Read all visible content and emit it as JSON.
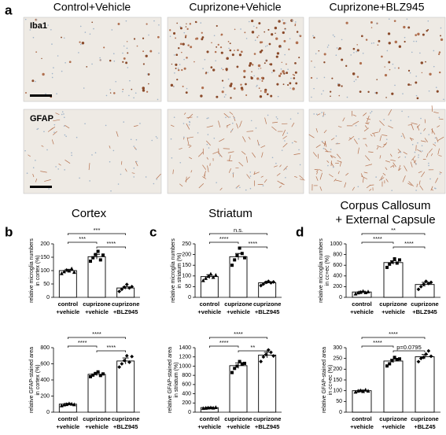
{
  "panel_a": {
    "label": "a",
    "columns": [
      "Control+Vehicle",
      "Cuprizone+Vehicle",
      "Cuprizone+BLZ945"
    ],
    "rows": [
      "Iba1",
      "GFAP"
    ]
  },
  "chart_data": [
    {
      "type": "bar",
      "panel": "b",
      "title": [
        "Cortex"
      ],
      "ylabel": [
        "relative microglia numbers",
        "in cortex (%)"
      ],
      "categories": [
        [
          "control",
          "+vehicle"
        ],
        [
          "cuprizone",
          "+vehicle"
        ],
        [
          "cuprizone",
          "+BLZ945"
        ]
      ],
      "values": [
        100,
        152,
        35
      ],
      "errors": [
        5,
        9,
        5
      ],
      "points": [
        [
          90,
          97,
          103,
          100,
          108,
          95
        ],
        [
          135,
          148,
          160,
          172,
          140,
          158
        ],
        [
          22,
          30,
          38,
          48,
          35,
          40
        ]
      ],
      "significance": [
        "***",
        "****",
        "***"
      ],
      "ylim": [
        0,
        200
      ],
      "yticks": [
        0,
        50,
        100,
        150,
        200
      ]
    },
    {
      "type": "bar",
      "title": null,
      "ylabel": [
        "relative GFAP-stained area",
        "in cortex (%)"
      ],
      "categories": [
        [
          "control",
          "+vehicle"
        ],
        [
          "cuprizone",
          "+vehicle"
        ],
        [
          "cuprizone",
          "+BLZ945"
        ]
      ],
      "values": [
        100,
        470,
        635
      ],
      "errors": [
        10,
        18,
        38
      ],
      "points": [
        [
          85,
          95,
          100,
          110,
          105,
          98
        ],
        [
          440,
          460,
          480,
          500,
          455,
          475
        ],
        [
          560,
          600,
          640,
          700,
          620,
          690
        ]
      ],
      "significance": [
        "****",
        "****",
        "****"
      ],
      "ylim": [
        0,
        800
      ],
      "yticks": [
        0,
        200,
        400,
        600,
        800
      ]
    },
    {
      "type": "bar",
      "panel": "c",
      "title": [
        "Striatum"
      ],
      "ylabel": [
        "relative microglia numbers",
        "in striatum (%)"
      ],
      "categories": [
        [
          "control",
          "+vehicle"
        ],
        [
          "cuprizone",
          "+vehicle"
        ],
        [
          "cuprizone",
          "+BLZ945"
        ]
      ],
      "values": [
        97,
        190,
        68
      ],
      "errors": [
        9,
        15,
        5
      ],
      "points": [
        [
          80,
          90,
          100,
          110,
          95,
          105
        ],
        [
          150,
          175,
          195,
          230,
          205,
          185
        ],
        [
          55,
          62,
          70,
          75,
          68,
          72
        ]
      ],
      "significance": [
        "****",
        "****",
        "n.s."
      ],
      "ylim": [
        0,
        250
      ],
      "yticks": [
        0,
        50,
        100,
        150,
        200,
        250
      ]
    },
    {
      "type": "bar",
      "title": null,
      "ylabel": [
        "relative GFAP-stained area",
        "in striatum (%)"
      ],
      "categories": [
        [
          "control",
          "+vehicle"
        ],
        [
          "cuprizone",
          "+vehicle"
        ],
        [
          "cuprizone",
          "+BLZ945"
        ]
      ],
      "values": [
        100,
        1010,
        1240
      ],
      "errors": [
        10,
        60,
        60
      ],
      "points": [
        [
          90,
          95,
          100,
          105,
          98,
          110
        ],
        [
          860,
          950,
          1000,
          1100,
          1050,
          1060
        ],
        [
          1100,
          1200,
          1250,
          1350,
          1300,
          1220
        ]
      ],
      "significance": [
        "****",
        "**",
        "****"
      ],
      "ylim": [
        0,
        1400
      ],
      "yticks": [
        0,
        200,
        400,
        600,
        800,
        1000,
        1200,
        1400
      ]
    },
    {
      "type": "bar",
      "panel": "d",
      "title": [
        "Corpus Callosum",
        "+ External Capsule"
      ],
      "ylabel": [
        "relative microglia numbers",
        "in cc+ec (%)"
      ],
      "categories": [
        [
          "control",
          "+vehicle"
        ],
        [
          "cuprizone",
          "+vehicle"
        ],
        [
          "cuprizone",
          "+BLZ945"
        ]
      ],
      "values": [
        100,
        650,
        240
      ],
      "errors": [
        15,
        35,
        40
      ],
      "points": [
        [
          70,
          90,
          100,
          120,
          95,
          110
        ],
        [
          560,
          620,
          660,
          720,
          640,
          700
        ],
        [
          150,
          200,
          240,
          300,
          260,
          280
        ]
      ],
      "significance": [
        "****",
        "****",
        "**"
      ],
      "ylim": [
        0,
        1000
      ],
      "yticks": [
        0,
        200,
        400,
        600,
        800,
        1000
      ]
    },
    {
      "type": "bar",
      "title": null,
      "ylabel": [
        "relative GFAP-stained area",
        "in cc+ec (%)"
      ],
      "categories": [
        [
          "control",
          "+vehicle"
        ],
        [
          "cuprizone",
          "+vehicle"
        ],
        [
          "cuprizone",
          "+BLZ45"
        ]
      ],
      "values": [
        100,
        238,
        258
      ],
      "errors": [
        3,
        8,
        10
      ],
      "points": [
        [
          95,
          100,
          102,
          98,
          105,
          100
        ],
        [
          215,
          225,
          240,
          255,
          245,
          248
        ],
        [
          235,
          250,
          255,
          270,
          285,
          260
        ]
      ],
      "significance": [
        "****",
        "p=0.0795",
        "****"
      ],
      "ylim": [
        0,
        300
      ],
      "yticks": [
        0,
        50,
        100,
        150,
        200,
        250,
        300
      ]
    }
  ]
}
